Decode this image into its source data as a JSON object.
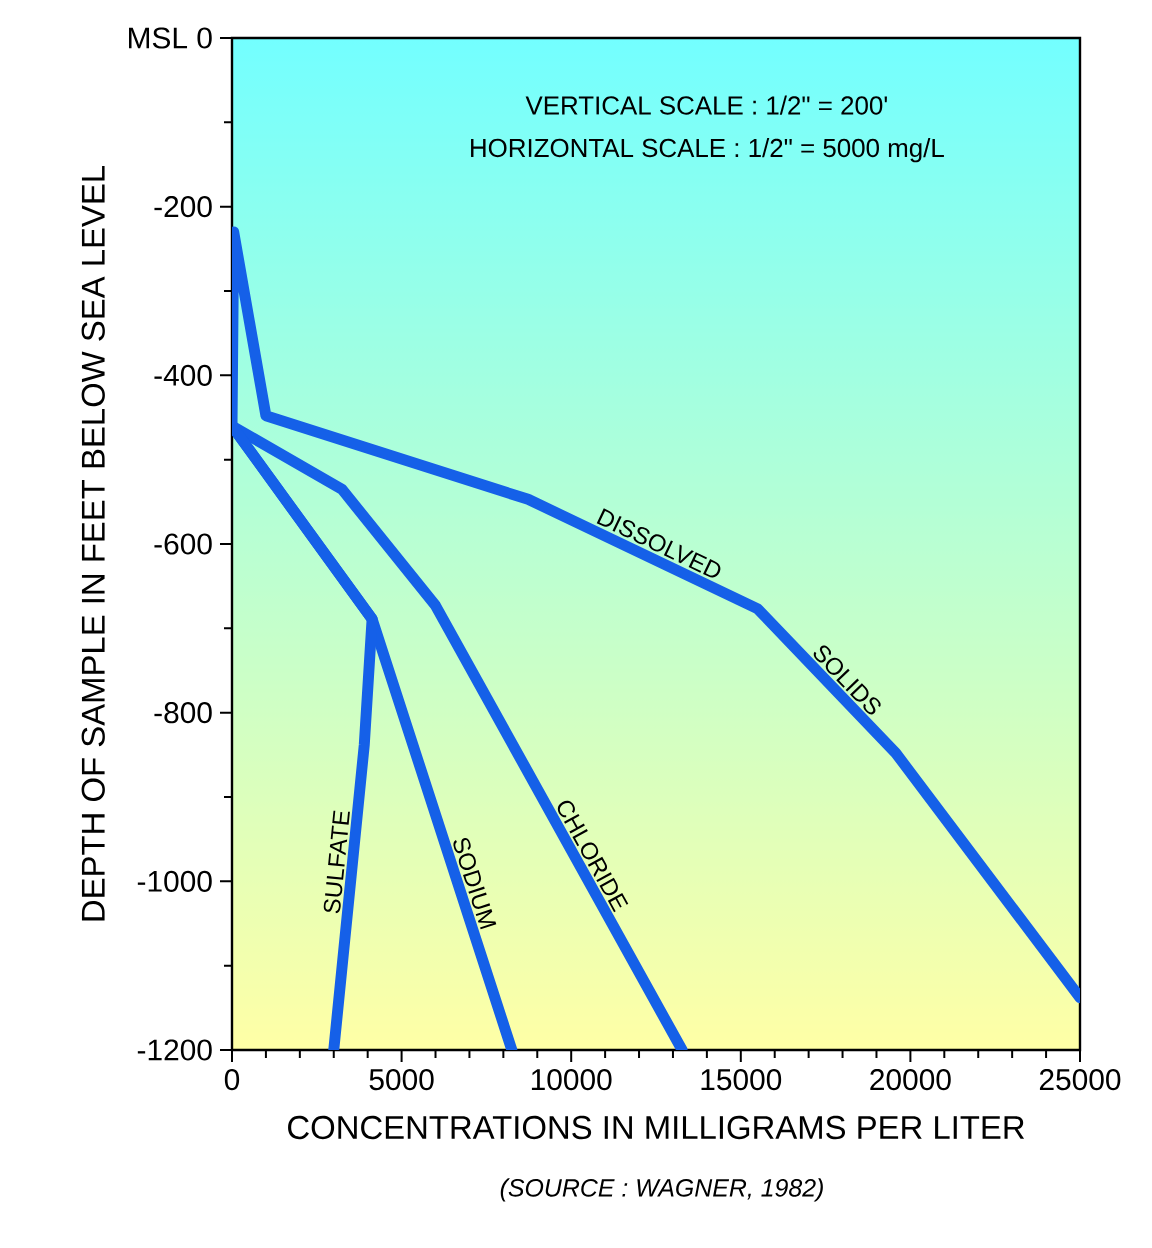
{
  "chart_data": {
    "type": "line",
    "xlabel": "CONCENTRATIONS IN MILLIGRAMS PER LITER",
    "ylabel": "DEPTH OF SAMPLE IN FEET BELOW SEA LEVEL",
    "xlim": [
      0,
      25000
    ],
    "ylim": [
      -1200,
      0
    ],
    "xticks": [
      0,
      5000,
      10000,
      15000,
      20000,
      25000
    ],
    "yticks": [
      -1200,
      -1000,
      -800,
      -600,
      -400,
      -200,
      {
        "value": 0,
        "label": "MSL 0"
      }
    ],
    "grid": false,
    "marker": "none",
    "line_style": "solid",
    "series": [
      {
        "color": "#1560e8",
        "x": [
          0,
          50,
          1000,
          8730,
          15500,
          19570,
          25000
        ],
        "values": [
          -460,
          -230,
          -448,
          -547,
          -677,
          -848,
          -1138
        ]
      },
      {
        "color": "#1560e8",
        "x": [
          0,
          3240,
          6000,
          13270
        ],
        "values": [
          -460,
          -535,
          -673,
          -1200
        ]
      },
      {
        "color": "#1560e8",
        "x": [
          0,
          4130,
          8250
        ],
        "values": [
          -460,
          -689,
          -1200
        ]
      },
      {
        "color": "#1560e8",
        "x": [
          0,
          4130,
          3900,
          3000
        ],
        "values": [
          -460,
          -689,
          -838,
          -1200
        ]
      }
    ],
    "annotations": [
      "VERTICAL SCALE : 1/2\" = 200'",
      "HORIZONTAL SCALE : 1/2\" = 5000 mg/L",
      {
        "text": "DISSOLVED",
        "x": 12400,
        "y": -617
      },
      {
        "text": "SOLIDS",
        "x": 17800,
        "y": -774
      },
      {
        "text": "CHLORIDE",
        "x": 10200,
        "y": -978
      },
      {
        "text": "SODIUM",
        "x": 6700,
        "y": -1008
      },
      {
        "text": "SULFATE",
        "x": 3550,
        "y": -979
      },
      "(SOURCE : WAGNER, 1982)"
    ]
  }
}
